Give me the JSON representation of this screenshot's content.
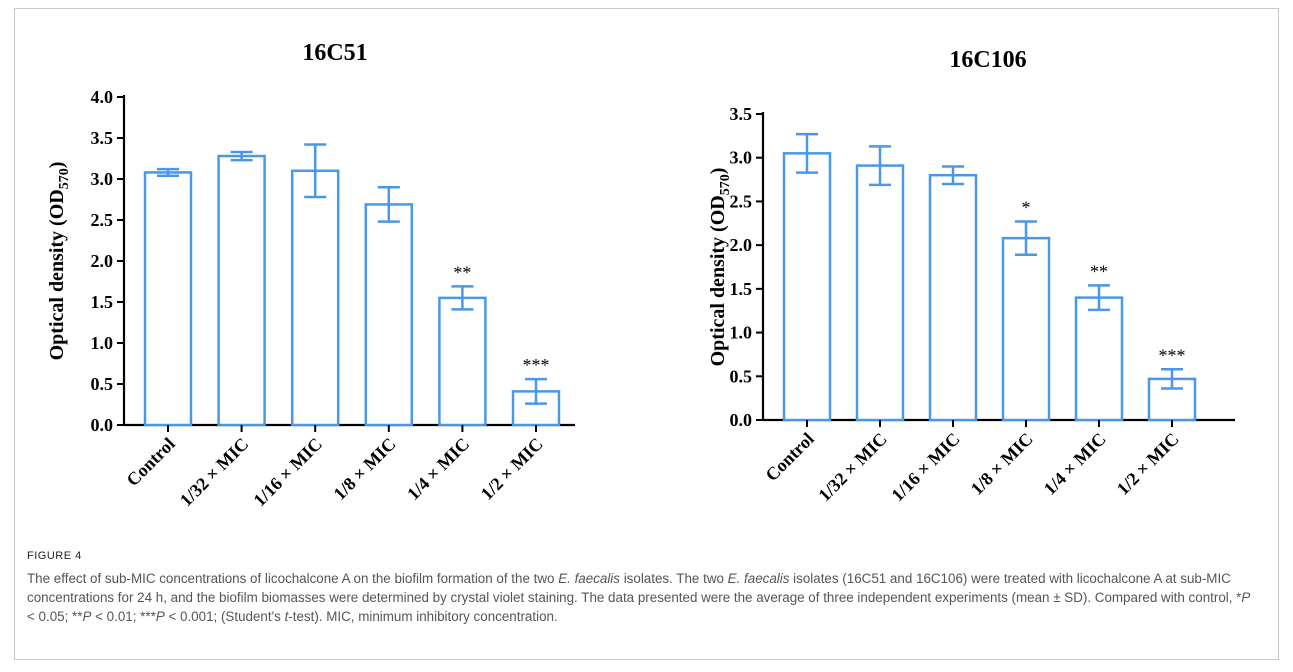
{
  "chart_data": [
    {
      "type": "bar",
      "title": "16C51",
      "ylabel": "Optical density (OD",
      "ylabel_sub": "570",
      "ylabel_close": ")",
      "categories": [
        "Control",
        "1/32 × MIC",
        "1/16 × MIC",
        "1/8 × MIC",
        "1/4 × MIC",
        "1/2 × MIC"
      ],
      "values": [
        3.08,
        3.28,
        3.1,
        2.69,
        1.55,
        0.41
      ],
      "errors": [
        0.04,
        0.05,
        0.32,
        0.21,
        0.14,
        0.15
      ],
      "significance": [
        "",
        "",
        "",
        "",
        "**",
        "***"
      ],
      "ylim": [
        0,
        4.0
      ],
      "yticks": [
        "0.0",
        "0.5",
        "1.0",
        "1.5",
        "2.0",
        "2.5",
        "3.0",
        "3.5",
        "4.0"
      ],
      "bar_color": "#4a97e8"
    },
    {
      "type": "bar",
      "title": "16C106",
      "ylabel": "Optical density (OD",
      "ylabel_sub": "570",
      "ylabel_close": ")",
      "categories": [
        "Control",
        "1/32 × MIC",
        "1/16 × MIC",
        "1/8 × MIC",
        "1/4 × MIC",
        "1/2 × MIC"
      ],
      "values": [
        3.05,
        2.91,
        2.8,
        2.08,
        1.4,
        0.47
      ],
      "errors": [
        0.22,
        0.22,
        0.1,
        0.19,
        0.14,
        0.11
      ],
      "significance": [
        "",
        "",
        "",
        "*",
        "**",
        "***"
      ],
      "ylim": [
        0,
        3.5
      ],
      "yticks": [
        "0.0",
        "0.5",
        "1.0",
        "1.5",
        "2.0",
        "2.5",
        "3.0",
        "3.5"
      ],
      "bar_color": "#4a97e8"
    }
  ],
  "figure": {
    "label": "FIGURE 4",
    "caption": [
      {
        "t": "The effect of sub-MIC concentrations of licochalcone A on the biofilm formation of the two "
      },
      {
        "t": "E. faecalis",
        "i": true
      },
      {
        "t": " isolates. The two "
      },
      {
        "t": "E. faecalis",
        "i": true
      },
      {
        "t": " isolates (16C51 and 16C106) were treated with licochalcone A at sub-MIC concentrations for 24 h, and the biofilm biomasses were determined by crystal violet staining. The data presented were the average of three independent experiments (mean ± SD). Compared with control, *"
      },
      {
        "t": "P",
        "i": true
      },
      {
        "t": " < 0.05; **"
      },
      {
        "t": "P",
        "i": true
      },
      {
        "t": " < 0.01; ***"
      },
      {
        "t": "P",
        "i": true
      },
      {
        "t": " < 0.001; (Student's "
      },
      {
        "t": "t",
        "i": true
      },
      {
        "t": "-test). MIC, minimum inhibitory concentration."
      }
    ]
  }
}
